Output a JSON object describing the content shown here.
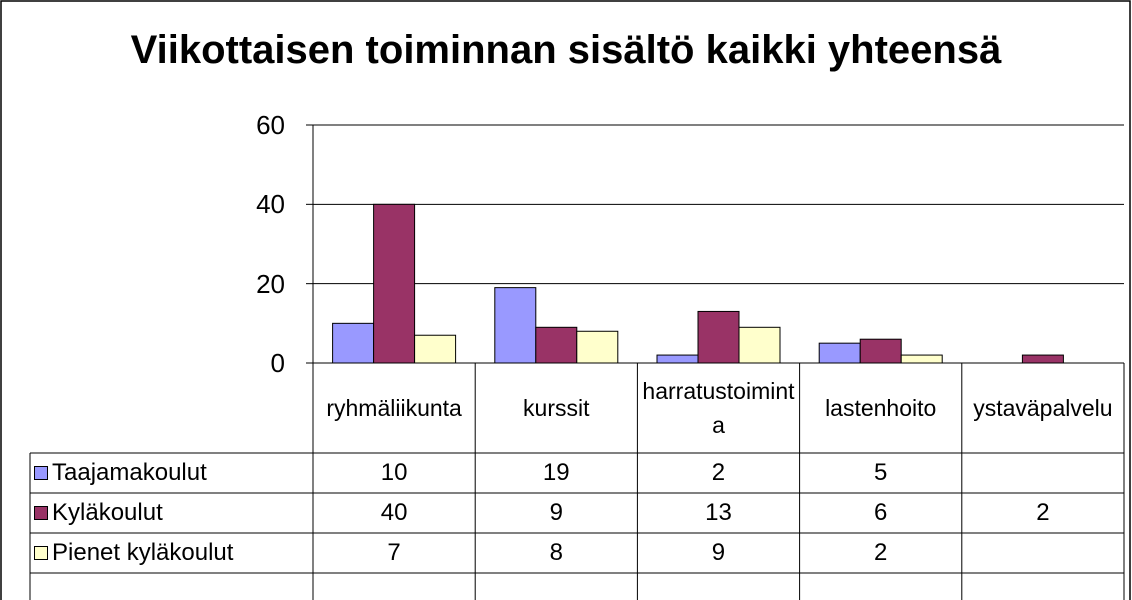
{
  "chart_data": {
    "type": "bar",
    "title": "Viikottaisen toiminnan sisältö kaikki yhteensä",
    "categories": [
      "ryhmäliikunta",
      "kurssit",
      "harratustoiminta",
      "lastenhoito",
      "ystaväpalvelu"
    ],
    "series": [
      {
        "name": "Taajamakoulut",
        "color": "#9999ff",
        "values": [
          10,
          19,
          2,
          5,
          null
        ]
      },
      {
        "name": "Kyläkoulut",
        "color": "#993366",
        "values": [
          40,
          9,
          13,
          6,
          2
        ]
      },
      {
        "name": "Pienet kyläkoulut",
        "color": "#ffffcc",
        "values": [
          7,
          8,
          9,
          2,
          null
        ]
      }
    ],
    "ylim": [
      0,
      60
    ],
    "yticks": [
      0,
      20,
      40,
      60
    ],
    "grid": true
  }
}
